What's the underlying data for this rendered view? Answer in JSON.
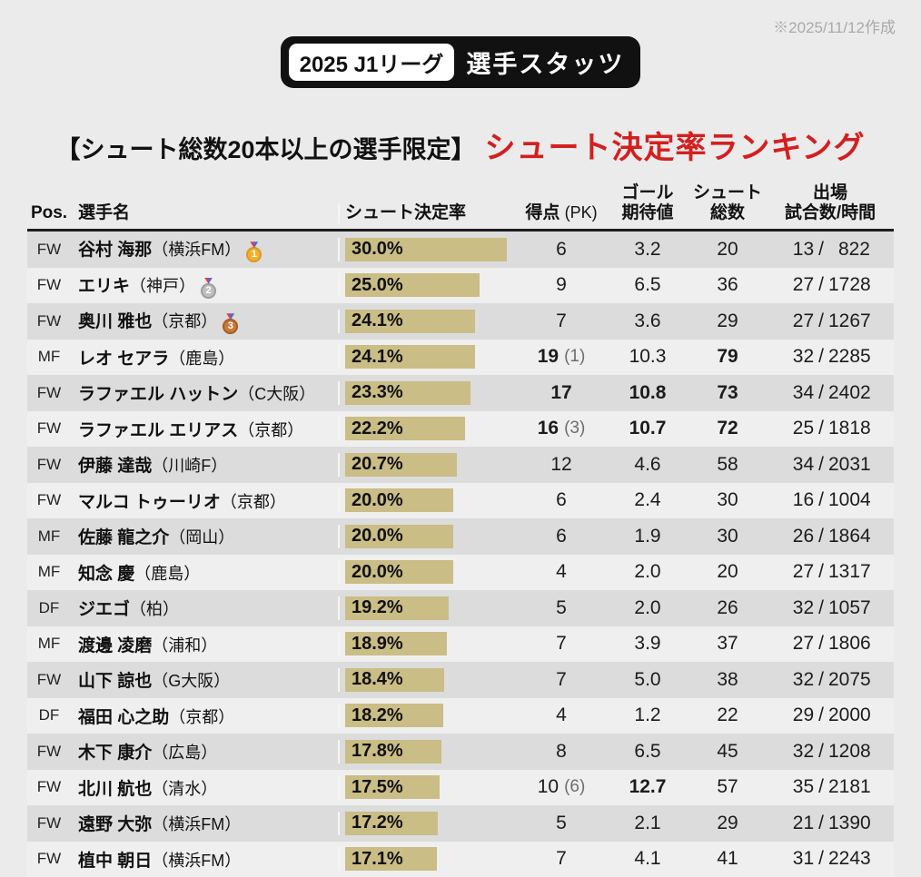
{
  "meta": {
    "created_note": "※2025/11/12作成"
  },
  "badge": {
    "year_league": "2025 J1リーグ",
    "label": "選手スタッツ"
  },
  "title": {
    "condition": "【シュート総数20本以上の選手限定】",
    "main": "シュート決定率ランキング"
  },
  "colors": {
    "page_bg": "#ebebeb",
    "row_dark": "#dcdcdc",
    "row_light": "#efefef",
    "bar": "#cabd85",
    "title_red": "#d41f1f",
    "badge_black": "#111111",
    "note_gray": "#a9a9a9",
    "header_rule": "#1c1c1c"
  },
  "table": {
    "columns": {
      "pos": "Pos.",
      "name": "選手名",
      "rate": "シュート決定率",
      "goals": "得点",
      "goals_pk": "(PK)",
      "xg1": "ゴール",
      "xg2": "期待値",
      "shots1": "シュート",
      "shots2": "総数",
      "apps1": "出場",
      "apps2": "試合数/時間"
    },
    "rate_axis_max": 30.0,
    "players": [
      {
        "pos": "FW",
        "name": "谷村 海那",
        "team": "横浜FM",
        "medal": "1",
        "rate": "30.0%",
        "rate_val": 30.0,
        "goals": "6",
        "pk": "",
        "goals_bold": false,
        "xg": "3.2",
        "xg_bold": false,
        "shots": "20",
        "shots_bold": false,
        "apps": "13",
        "minutes": "822"
      },
      {
        "pos": "FW",
        "name": "エリキ",
        "team": "神戸",
        "medal": "2",
        "rate": "25.0%",
        "rate_val": 25.0,
        "goals": "9",
        "pk": "",
        "goals_bold": false,
        "xg": "6.5",
        "xg_bold": false,
        "shots": "36",
        "shots_bold": false,
        "apps": "27",
        "minutes": "1728"
      },
      {
        "pos": "FW",
        "name": "奥川 雅也",
        "team": "京都",
        "medal": "3",
        "rate": "24.1%",
        "rate_val": 24.1,
        "goals": "7",
        "pk": "",
        "goals_bold": false,
        "xg": "3.6",
        "xg_bold": false,
        "shots": "29",
        "shots_bold": false,
        "apps": "27",
        "minutes": "1267"
      },
      {
        "pos": "MF",
        "name": "レオ セアラ",
        "team": "鹿島",
        "medal": "",
        "rate": "24.1%",
        "rate_val": 24.1,
        "goals": "19",
        "pk": "1",
        "goals_bold": true,
        "xg": "10.3",
        "xg_bold": false,
        "shots": "79",
        "shots_bold": true,
        "apps": "32",
        "minutes": "2285"
      },
      {
        "pos": "FW",
        "name": "ラファエル ハットン",
        "team": "C大阪",
        "medal": "",
        "rate": "23.3%",
        "rate_val": 23.3,
        "goals": "17",
        "pk": "",
        "goals_bold": true,
        "xg": "10.8",
        "xg_bold": true,
        "shots": "73",
        "shots_bold": true,
        "apps": "34",
        "minutes": "2402"
      },
      {
        "pos": "FW",
        "name": "ラファエル エリアス",
        "team": "京都",
        "medal": "",
        "rate": "22.2%",
        "rate_val": 22.2,
        "goals": "16",
        "pk": "3",
        "goals_bold": true,
        "xg": "10.7",
        "xg_bold": true,
        "shots": "72",
        "shots_bold": true,
        "apps": "25",
        "minutes": "1818"
      },
      {
        "pos": "FW",
        "name": "伊藤 達哉",
        "team": "川崎F",
        "medal": "",
        "rate": "20.7%",
        "rate_val": 20.7,
        "goals": "12",
        "pk": "",
        "goals_bold": false,
        "xg": "4.6",
        "xg_bold": false,
        "shots": "58",
        "shots_bold": false,
        "apps": "34",
        "minutes": "2031"
      },
      {
        "pos": "FW",
        "name": "マルコ トゥーリオ",
        "team": "京都",
        "medal": "",
        "rate": "20.0%",
        "rate_val": 20.0,
        "goals": "6",
        "pk": "",
        "goals_bold": false,
        "xg": "2.4",
        "xg_bold": false,
        "shots": "30",
        "shots_bold": false,
        "apps": "16",
        "minutes": "1004"
      },
      {
        "pos": "MF",
        "name": "佐藤 龍之介",
        "team": "岡山",
        "medal": "",
        "rate": "20.0%",
        "rate_val": 20.0,
        "goals": "6",
        "pk": "",
        "goals_bold": false,
        "xg": "1.9",
        "xg_bold": false,
        "shots": "30",
        "shots_bold": false,
        "apps": "26",
        "minutes": "1864"
      },
      {
        "pos": "MF",
        "name": "知念 慶",
        "team": "鹿島",
        "medal": "",
        "rate": "20.0%",
        "rate_val": 20.0,
        "goals": "4",
        "pk": "",
        "goals_bold": false,
        "xg": "2.0",
        "xg_bold": false,
        "shots": "20",
        "shots_bold": false,
        "apps": "27",
        "minutes": "1317"
      },
      {
        "pos": "DF",
        "name": "ジエゴ",
        "team": "柏",
        "medal": "",
        "rate": "19.2%",
        "rate_val": 19.2,
        "goals": "5",
        "pk": "",
        "goals_bold": false,
        "xg": "2.0",
        "xg_bold": false,
        "shots": "26",
        "shots_bold": false,
        "apps": "32",
        "minutes": "1057"
      },
      {
        "pos": "MF",
        "name": "渡邊 凌磨",
        "team": "浦和",
        "medal": "",
        "rate": "18.9%",
        "rate_val": 18.9,
        "goals": "7",
        "pk": "",
        "goals_bold": false,
        "xg": "3.9",
        "xg_bold": false,
        "shots": "37",
        "shots_bold": false,
        "apps": "27",
        "minutes": "1806"
      },
      {
        "pos": "FW",
        "name": "山下 諒也",
        "team": "G大阪",
        "medal": "",
        "rate": "18.4%",
        "rate_val": 18.4,
        "goals": "7",
        "pk": "",
        "goals_bold": false,
        "xg": "5.0",
        "xg_bold": false,
        "shots": "38",
        "shots_bold": false,
        "apps": "32",
        "minutes": "2075"
      },
      {
        "pos": "DF",
        "name": "福田 心之助",
        "team": "京都",
        "medal": "",
        "rate": "18.2%",
        "rate_val": 18.2,
        "goals": "4",
        "pk": "",
        "goals_bold": false,
        "xg": "1.2",
        "xg_bold": false,
        "shots": "22",
        "shots_bold": false,
        "apps": "29",
        "minutes": "2000"
      },
      {
        "pos": "FW",
        "name": "木下 康介",
        "team": "広島",
        "medal": "",
        "rate": "17.8%",
        "rate_val": 17.8,
        "goals": "8",
        "pk": "",
        "goals_bold": false,
        "xg": "6.5",
        "xg_bold": false,
        "shots": "45",
        "shots_bold": false,
        "apps": "32",
        "minutes": "1208"
      },
      {
        "pos": "FW",
        "name": "北川 航也",
        "team": "清水",
        "medal": "",
        "rate": "17.5%",
        "rate_val": 17.5,
        "goals": "10",
        "pk": "6",
        "goals_bold": false,
        "xg": "12.7",
        "xg_bold": true,
        "shots": "57",
        "shots_bold": false,
        "apps": "35",
        "minutes": "2181"
      },
      {
        "pos": "FW",
        "name": "遠野 大弥",
        "team": "横浜FM",
        "medal": "",
        "rate": "17.2%",
        "rate_val": 17.2,
        "goals": "5",
        "pk": "",
        "goals_bold": false,
        "xg": "2.1",
        "xg_bold": false,
        "shots": "29",
        "shots_bold": false,
        "apps": "21",
        "minutes": "1390"
      },
      {
        "pos": "FW",
        "name": "植中 朝日",
        "team": "横浜FM",
        "medal": "",
        "rate": "17.1%",
        "rate_val": 17.1,
        "goals": "7",
        "pk": "",
        "goals_bold": false,
        "xg": "4.1",
        "xg_bold": false,
        "shots": "41",
        "shots_bold": false,
        "apps": "31",
        "minutes": "2243"
      }
    ]
  },
  "chart_data": {
    "type": "bar",
    "orientation": "horizontal",
    "title": "シュート決定率ランキング",
    "subtitle": "【シュート総数20本以上の選手限定】",
    "categories": [
      "谷村 海那（横浜FM）",
      "エリキ（神戸）",
      "奥川 雅也（京都）",
      "レオ セアラ（鹿島）",
      "ラファエル ハットン（C大阪）",
      "ラファエル エリアス（京都）",
      "伊藤 達哉（川崎F）",
      "マルコ トゥーリオ（京都）",
      "佐藤 龍之介（岡山）",
      "知念 慶（鹿島）",
      "ジエゴ（柏）",
      "渡邊 凌磨（浦和）",
      "山下 諒也（G大阪）",
      "福田 心之助（京都）",
      "木下 康介（広島）",
      "北川 航也（清水）",
      "遠野 大弥（横浜FM）",
      "植中 朝日（横浜FM）"
    ],
    "values": [
      30.0,
      25.0,
      24.1,
      24.1,
      23.3,
      22.2,
      20.7,
      20.0,
      20.0,
      20.0,
      19.2,
      18.9,
      18.4,
      18.2,
      17.8,
      17.5,
      17.2,
      17.1
    ],
    "unit": "%",
    "xlim": [
      0,
      30
    ],
    "grid": false,
    "legend": false,
    "bar_color": "#cabd85"
  }
}
